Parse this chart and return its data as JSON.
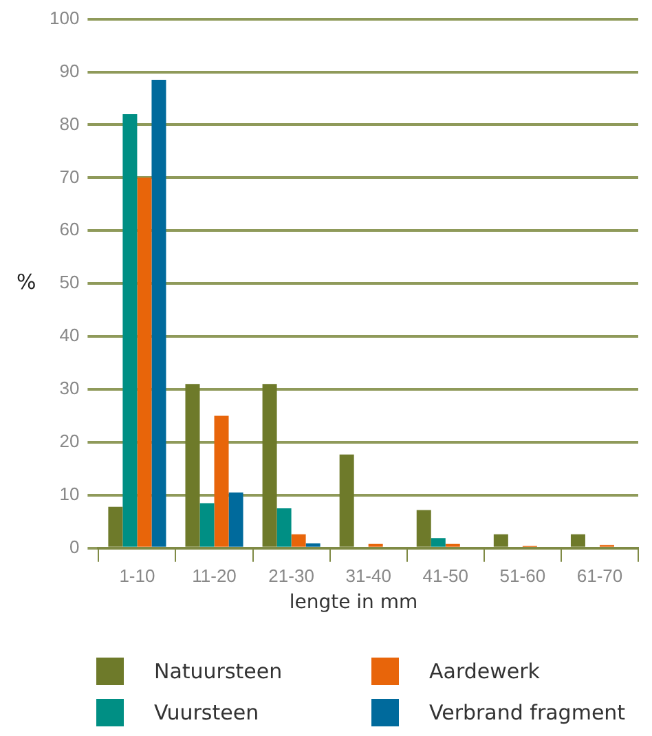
{
  "chart_data": {
    "type": "bar",
    "xlabel": "lengte in mm",
    "ylabel": "%",
    "categories": [
      "1-10",
      "11-20",
      "21-30",
      "31-40",
      "41-50",
      "51-60",
      "61-70"
    ],
    "series": [
      {
        "name": "Natuursteen",
        "color": "#6e7a2a",
        "values": [
          7.8,
          31,
          31,
          17.7,
          7.2,
          2.6,
          2.6
        ]
      },
      {
        "name": "Vuursteen",
        "color": "#008f84",
        "values": [
          82,
          8.5,
          7.5,
          0,
          1.9,
          0,
          0
        ]
      },
      {
        "name": "Aardewerk",
        "color": "#e8650a",
        "values": [
          70,
          25,
          2.6,
          0.8,
          0.8,
          0.4,
          0.6
        ]
      },
      {
        "name": "Verbrand fragment",
        "color": "#006a9c",
        "values": [
          88.5,
          10.5,
          0.9,
          0,
          0,
          0,
          0
        ]
      }
    ],
    "ylim": [
      0,
      100
    ],
    "yticks": [
      0,
      10,
      20,
      30,
      40,
      50,
      60,
      70,
      80,
      90,
      100
    ],
    "grid": "y",
    "legend": "bottom"
  }
}
